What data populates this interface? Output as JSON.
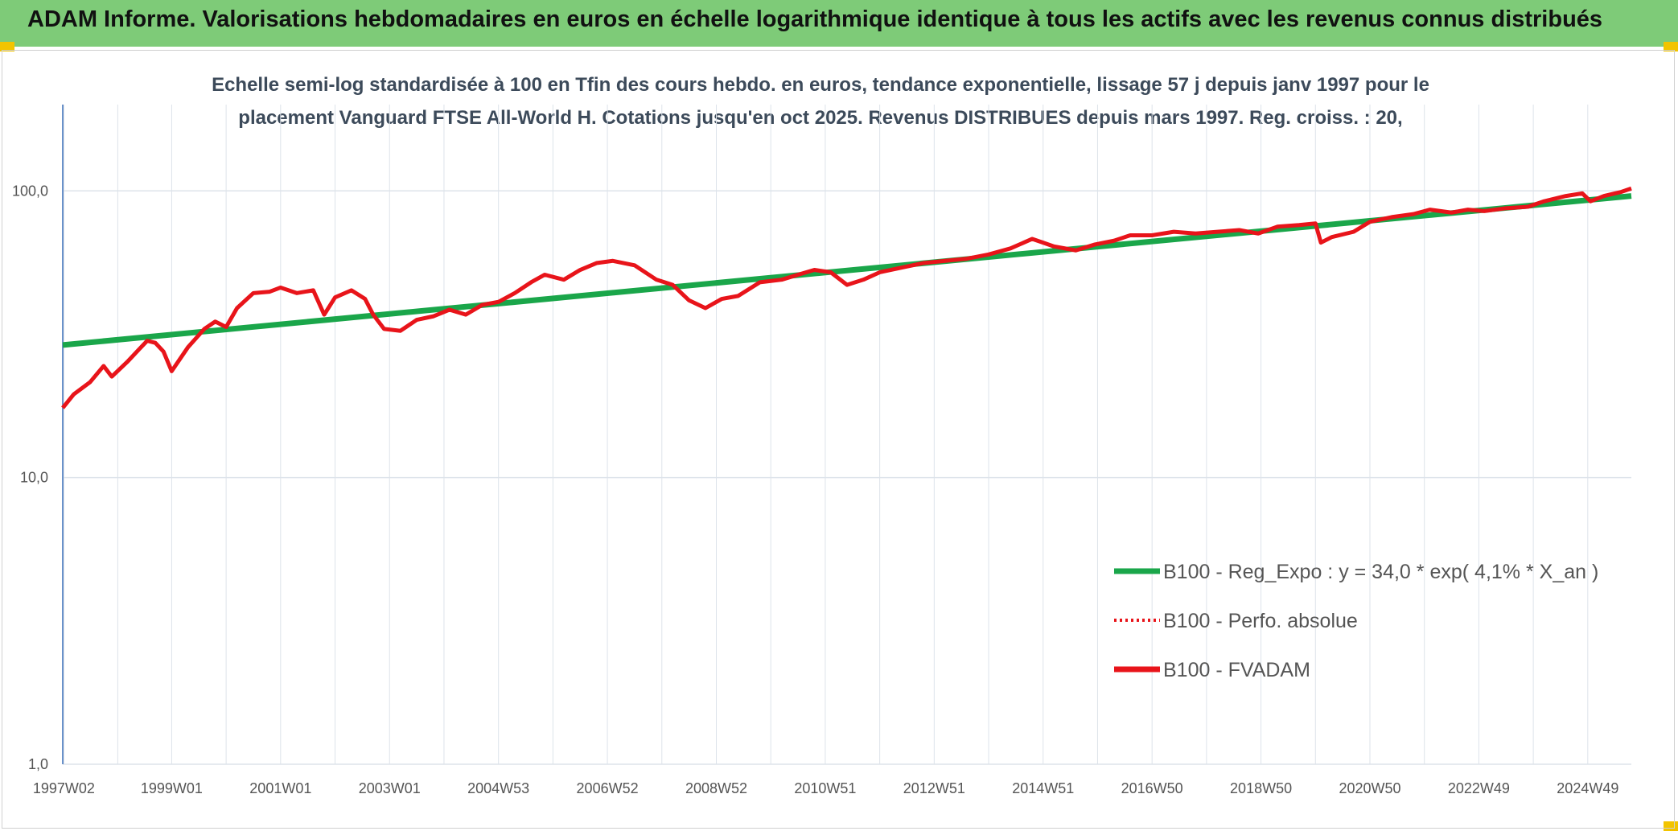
{
  "header": {
    "title": "ADAM Informe. Valorisations hebdomadaires en euros en échelle logarithmique identique à tous les actifs avec les revenus connus distribués"
  },
  "chart_data": {
    "type": "line",
    "title_line1": "Echelle semi-log standardisée à 100 en Tfin des cours hebdo. en euros, tendance exponentielle, lissage 57 j depuis janv 1997 pour le",
    "title_line2": "placement Vanguard FTSE All-World H. Cotations jusqu'en oct 2025. Revenus DISTRIBUES depuis mars 1997. Reg. croiss. : 20,",
    "y_scale": "log",
    "ylim": [
      1,
      200
    ],
    "y_ticks": [
      {
        "value": 1,
        "label": "1,0"
      },
      {
        "value": 10,
        "label": "10,0"
      },
      {
        "value": 100,
        "label": "100,0"
      }
    ],
    "xlim": [
      1997.0,
      2025.8
    ],
    "x_ticks": [
      {
        "value": 1997.02,
        "label": "1997W02"
      },
      {
        "value": 1999.0,
        "label": "1999W01"
      },
      {
        "value": 2001.0,
        "label": "2001W01"
      },
      {
        "value": 2003.0,
        "label": "2003W01"
      },
      {
        "value": 2005.0,
        "label": "2004W53"
      },
      {
        "value": 2007.0,
        "label": "2006W52"
      },
      {
        "value": 2009.0,
        "label": "2008W52"
      },
      {
        "value": 2011.0,
        "label": "2010W51"
      },
      {
        "value": 2013.0,
        "label": "2012W51"
      },
      {
        "value": 2015.0,
        "label": "2014W51"
      },
      {
        "value": 2017.0,
        "label": "2016W50"
      },
      {
        "value": 2019.0,
        "label": "2018W50"
      },
      {
        "value": 2021.0,
        "label": "2020W50"
      },
      {
        "value": 2023.0,
        "label": "2022W49"
      },
      {
        "value": 2025.0,
        "label": "2024W49"
      }
    ],
    "grid": true,
    "legend_position": "bottom-right",
    "series": [
      {
        "name": "B100 - Reg_Expo : y = 34,0 * exp( 4,1% *  X_an )",
        "color": "#1aa64a",
        "style": "solid",
        "x": [
          1997.0,
          2025.8
        ],
        "y": [
          29.0,
          96.0
        ]
      },
      {
        "name": "B100 - Perfo. absolue",
        "color": "#e8141a",
        "style": "dotted",
        "x": [],
        "y": []
      },
      {
        "name": "B100 - FVADAM",
        "color": "#e8141a",
        "style": "solid",
        "x": [
          1997.0,
          1997.2,
          1997.5,
          1997.75,
          1997.9,
          1998.2,
          1998.4,
          1998.55,
          1998.7,
          1998.85,
          1999.0,
          1999.3,
          1999.6,
          1999.8,
          2000.0,
          2000.2,
          2000.5,
          2000.8,
          2001.0,
          2001.3,
          2001.6,
          2001.8,
          2002.0,
          2002.3,
          2002.55,
          2002.7,
          2002.9,
          2003.2,
          2003.5,
          2003.8,
          2004.1,
          2004.4,
          2004.7,
          2005.0,
          2005.3,
          2005.6,
          2005.85,
          2006.2,
          2006.5,
          2006.8,
          2007.1,
          2007.5,
          2007.9,
          2008.2,
          2008.5,
          2008.8,
          2009.1,
          2009.4,
          2009.8,
          2010.2,
          2010.5,
          2010.8,
          2011.1,
          2011.4,
          2011.7,
          2012.0,
          2012.4,
          2012.8,
          2013.2,
          2013.6,
          2014.0,
          2014.4,
          2014.8,
          2015.0,
          2015.2,
          2015.6,
          2015.95,
          2016.3,
          2016.6,
          2017.0,
          2017.4,
          2017.8,
          2018.2,
          2018.6,
          2018.95,
          2019.3,
          2019.7,
          2020.0,
          2020.1,
          2020.3,
          2020.7,
          2021.0,
          2021.4,
          2021.8,
          2022.1,
          2022.5,
          2022.8,
          2023.1,
          2023.5,
          2023.9,
          2024.2,
          2024.6,
          2024.9,
          2025.05,
          2025.3,
          2025.6,
          2025.8
        ],
        "y": [
          17.5,
          19.5,
          21.5,
          24.5,
          22.5,
          25.5,
          28.0,
          30.0,
          29.5,
          27.5,
          23.5,
          28.5,
          33.0,
          35.0,
          33.5,
          39.0,
          44.0,
          44.5,
          46.0,
          44.0,
          45.0,
          37.0,
          42.5,
          45.0,
          42.0,
          37.0,
          33.0,
          32.5,
          35.5,
          36.5,
          38.5,
          37.0,
          40.0,
          41.0,
          44.0,
          48.0,
          51.0,
          49.0,
          53.0,
          56.0,
          57.0,
          55.0,
          49.0,
          47.0,
          41.5,
          39.0,
          42.0,
          43.0,
          48.0,
          49.0,
          51.0,
          53.0,
          52.0,
          47.0,
          49.0,
          52.0,
          54.0,
          56.0,
          57.0,
          58.0,
          60.0,
          63.0,
          68.0,
          66.0,
          64.0,
          62.0,
          65.0,
          67.0,
          70.0,
          70.0,
          72.0,
          71.0,
          72.0,
          73.0,
          71.0,
          75.0,
          76.0,
          77.0,
          66.0,
          69.0,
          72.0,
          78.0,
          81.0,
          83.0,
          86.0,
          84.0,
          86.0,
          85.0,
          87.0,
          88.0,
          92.0,
          96.0,
          98.0,
          92.0,
          96.0,
          99.0,
          102.0
        ]
      }
    ]
  }
}
